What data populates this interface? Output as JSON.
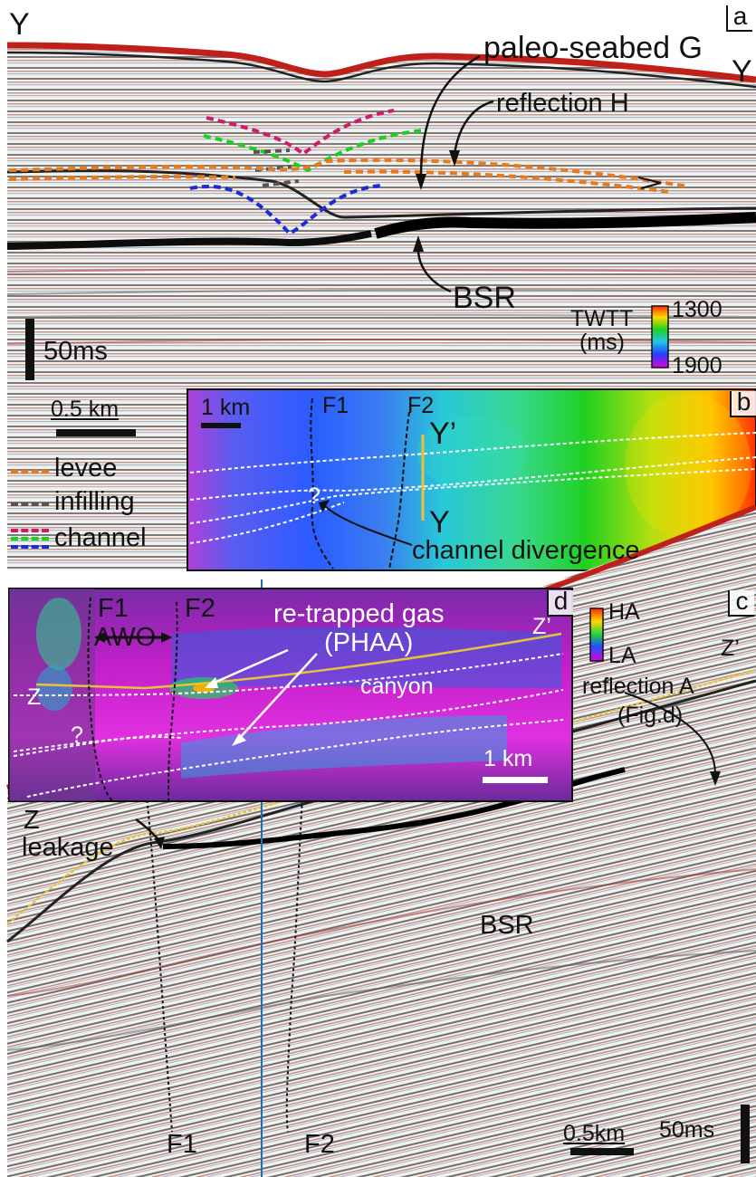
{
  "panels": {
    "a": {
      "letter": "a",
      "profile_start": "Y",
      "profile_end": "Y",
      "labels": {
        "paleo_seabed": "paleo-seabed G",
        "reflection_h": "reflection H",
        "bsr": "BSR"
      },
      "vertical_scale": "50ms",
      "horizontal_scale": "0.5 km",
      "legend": [
        {
          "label": "levee",
          "color": "#e87a1e"
        },
        {
          "label": "infilling",
          "color": "#555555"
        },
        {
          "label": "channel",
          "colors": [
            "#d11a6b",
            "#1bd11b",
            "#1a2bd9"
          ]
        }
      ],
      "colorbar": {
        "title_line1": "TWTT",
        "title_line2": "(ms)",
        "max_label": "1300",
        "min_label": "1900"
      }
    },
    "b": {
      "letter": "b",
      "scale": "1 km",
      "fault1": "F1",
      "fault2": "F2",
      "line_start": "Y",
      "line_end": "Y’",
      "question": "?",
      "divergence_label": "channel divergence"
    },
    "c": {
      "letter": "c",
      "line_start": "Z",
      "line_end": "Z’",
      "reflection_a_line1": "reflection A",
      "reflection_a_line2": "(Fig.d)",
      "leakage": "leakage",
      "bsr": "BSR",
      "fault1": "F1",
      "fault2": "F2",
      "vertical_scale": "50ms",
      "horizontal_scale": "0.5km"
    },
    "d": {
      "letter": "d",
      "fault1": "F1",
      "fault2": "F2",
      "awo": "AWO",
      "gas_line1": "re-trapped gas",
      "gas_line2": "(PHAA)",
      "canyon": "canyon",
      "line_start": "Z",
      "line_end": "Z’",
      "question": "?",
      "scale": "1 km",
      "colorbar_top": "HA",
      "colorbar_bottom": "LA"
    }
  },
  "colors": {
    "seabed_red": "#c0201a",
    "reflector_dark": "#111111",
    "line_yellow": "#e8c23a",
    "vertical_blue": "#1f6fb8"
  }
}
